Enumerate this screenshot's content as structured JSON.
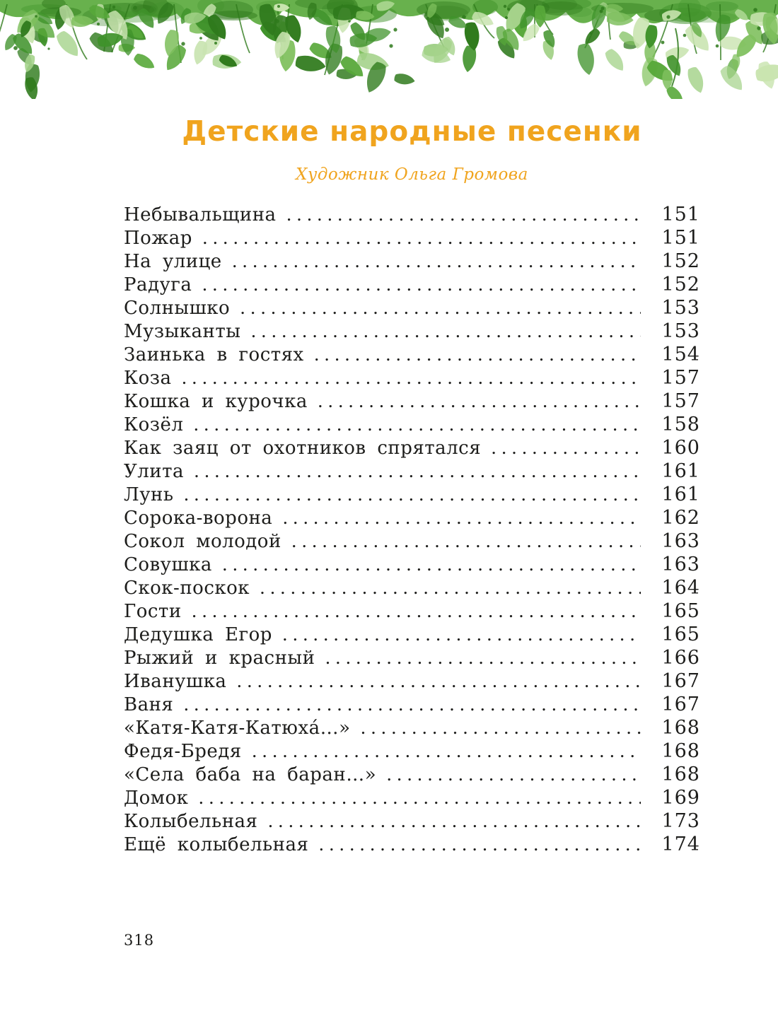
{
  "page": {
    "title": "Детские народные песенки",
    "subtitle": "Художник Ольга Громова",
    "footer_page_number": "318",
    "accent_color": "#F0A41E",
    "text_color": "#1d1d1b"
  },
  "decoration": {
    "description": "watercolor green foliage garland along top edge",
    "palette": [
      "#2f7a1c",
      "#3f922a",
      "#58a83a",
      "#7fc05e",
      "#a5d38b",
      "#c9e4b0"
    ]
  },
  "toc": {
    "entries": [
      {
        "title": "Небывальщина",
        "page": "151"
      },
      {
        "title": "Пожар",
        "page": "151"
      },
      {
        "title": "На улице",
        "page": "152"
      },
      {
        "title": "Радуга",
        "page": "152"
      },
      {
        "title": "Солнышко",
        "page": "153"
      },
      {
        "title": "Музыканты",
        "page": "153"
      },
      {
        "title": "Заинька в гостях",
        "page": "154"
      },
      {
        "title": "Коза",
        "page": "157"
      },
      {
        "title": "Кошка и курочка",
        "page": "157"
      },
      {
        "title": "Козёл",
        "page": "158"
      },
      {
        "title": "Как заяц от охотников спрятался",
        "page": "160"
      },
      {
        "title": "Улита",
        "page": "161"
      },
      {
        "title": "Лунь",
        "page": "161"
      },
      {
        "title": "Сорока-ворона",
        "page": "162"
      },
      {
        "title": "Сокол молодой",
        "page": "163"
      },
      {
        "title": "Совушка",
        "page": "163"
      },
      {
        "title": "Скок-поскок",
        "page": "164"
      },
      {
        "title": "Гости",
        "page": "165"
      },
      {
        "title": "Дедушка Егор",
        "page": "165"
      },
      {
        "title": "Рыжий и красный",
        "page": "166"
      },
      {
        "title": "Иванушка",
        "page": "167"
      },
      {
        "title": "Ваня",
        "page": "167"
      },
      {
        "title": "«Катя-Катя-Катюха́…»",
        "page": "168"
      },
      {
        "title": "Федя-Бредя",
        "page": "168"
      },
      {
        "title": "«Села баба на баран…»",
        "page": "168"
      },
      {
        "title": "Домок",
        "page": "169"
      },
      {
        "title": "Колыбельная",
        "page": "173"
      },
      {
        "title": "Ещё колыбельная",
        "page": "174"
      }
    ]
  }
}
